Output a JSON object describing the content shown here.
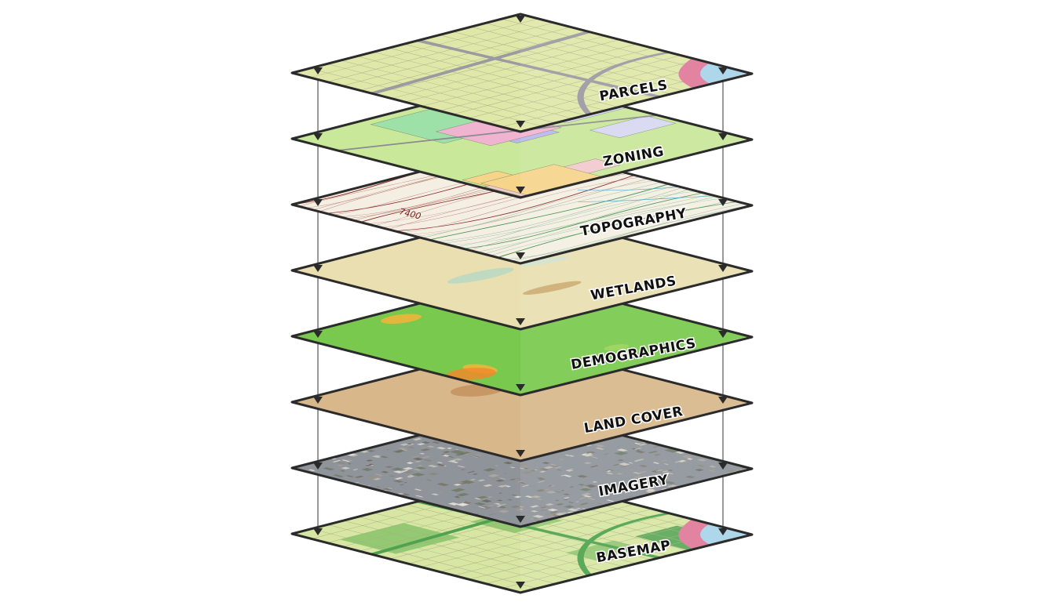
{
  "layers": [
    {
      "key": "parcels",
      "label": "PARCELS",
      "colors": {
        "base": "#dfe8a8",
        "accent": "#9a9aa0",
        "extra": "#e07a9a"
      }
    },
    {
      "key": "zoning",
      "label": "ZONING",
      "colors": {
        "base": "#c9e89a",
        "accent": "#f2b3c0",
        "extra": "#b9b8ec"
      }
    },
    {
      "key": "topography",
      "label": "TOPOGRAPHY",
      "contour_label": "7400",
      "colors": {
        "base": "#f4efe2",
        "accent": "#8b2a2a",
        "extra": "#3f8f4a"
      }
    },
    {
      "key": "wetlands",
      "label": "WETLANDS",
      "colors": {
        "base": "#e9dfb0",
        "accent": "#b8d8c4",
        "extra": "#c9a46a"
      }
    },
    {
      "key": "demographics",
      "label": "DEMOGRAPHICS",
      "colors": {
        "base": "#79c94e",
        "accent": "#f08a2c",
        "extra": "#e6e24a"
      }
    },
    {
      "key": "landcover",
      "label": "LAND COVER",
      "colors": {
        "base": "#d8b88a",
        "accent": "#a5623a",
        "extra": "#eed8a8"
      }
    },
    {
      "key": "imagery",
      "label": "IMAGERY",
      "colors": {
        "base": "#8e949a",
        "accent": "#c9ccd0",
        "extra": "#6b7358"
      }
    },
    {
      "key": "basemap",
      "label": "BASEMAP",
      "colors": {
        "base": "#d7e6a2",
        "accent": "#4fa24f",
        "extra": "#e07a9a"
      }
    }
  ]
}
